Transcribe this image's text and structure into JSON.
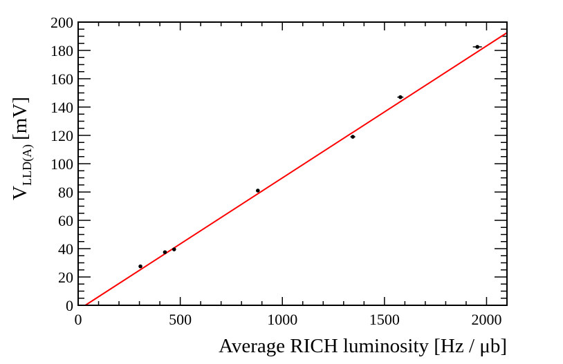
{
  "chart_data": {
    "type": "scatter",
    "title": "",
    "xlabel": "Average RICH luminosity [Hz / μb]",
    "ylabel_main": "V",
    "ylabel_sub": "LLD(A)",
    "ylabel_unit": "[mV]",
    "xlim": [
      0,
      2100
    ],
    "ylim": [
      0,
      200
    ],
    "x_ticks": [
      0,
      500,
      1000,
      1500,
      2000
    ],
    "y_ticks": [
      0,
      20,
      40,
      60,
      80,
      100,
      120,
      140,
      160,
      180,
      200
    ],
    "x_minor_step": 100,
    "y_minor_step": 5,
    "grid": false,
    "legend": "none",
    "series": [
      {
        "marker_color": "#000000",
        "points": [
          {
            "x": 305,
            "y": 27.5,
            "xerr": 5
          },
          {
            "x": 425,
            "y": 37.5,
            "xerr": 8
          },
          {
            "x": 470,
            "y": 39.5,
            "xerr": 6
          },
          {
            "x": 880,
            "y": 81,
            "xerr": 5
          },
          {
            "x": 1345,
            "y": 119,
            "xerr": 12
          },
          {
            "x": 1578,
            "y": 147,
            "xerr": 15
          },
          {
            "x": 1955,
            "y": 182.5,
            "xerr": 22
          }
        ]
      }
    ],
    "fit_line": {
      "color": "#ff0000",
      "x_start": 35,
      "y_start": 0,
      "x_end": 2100,
      "y_end": 192.5
    }
  }
}
